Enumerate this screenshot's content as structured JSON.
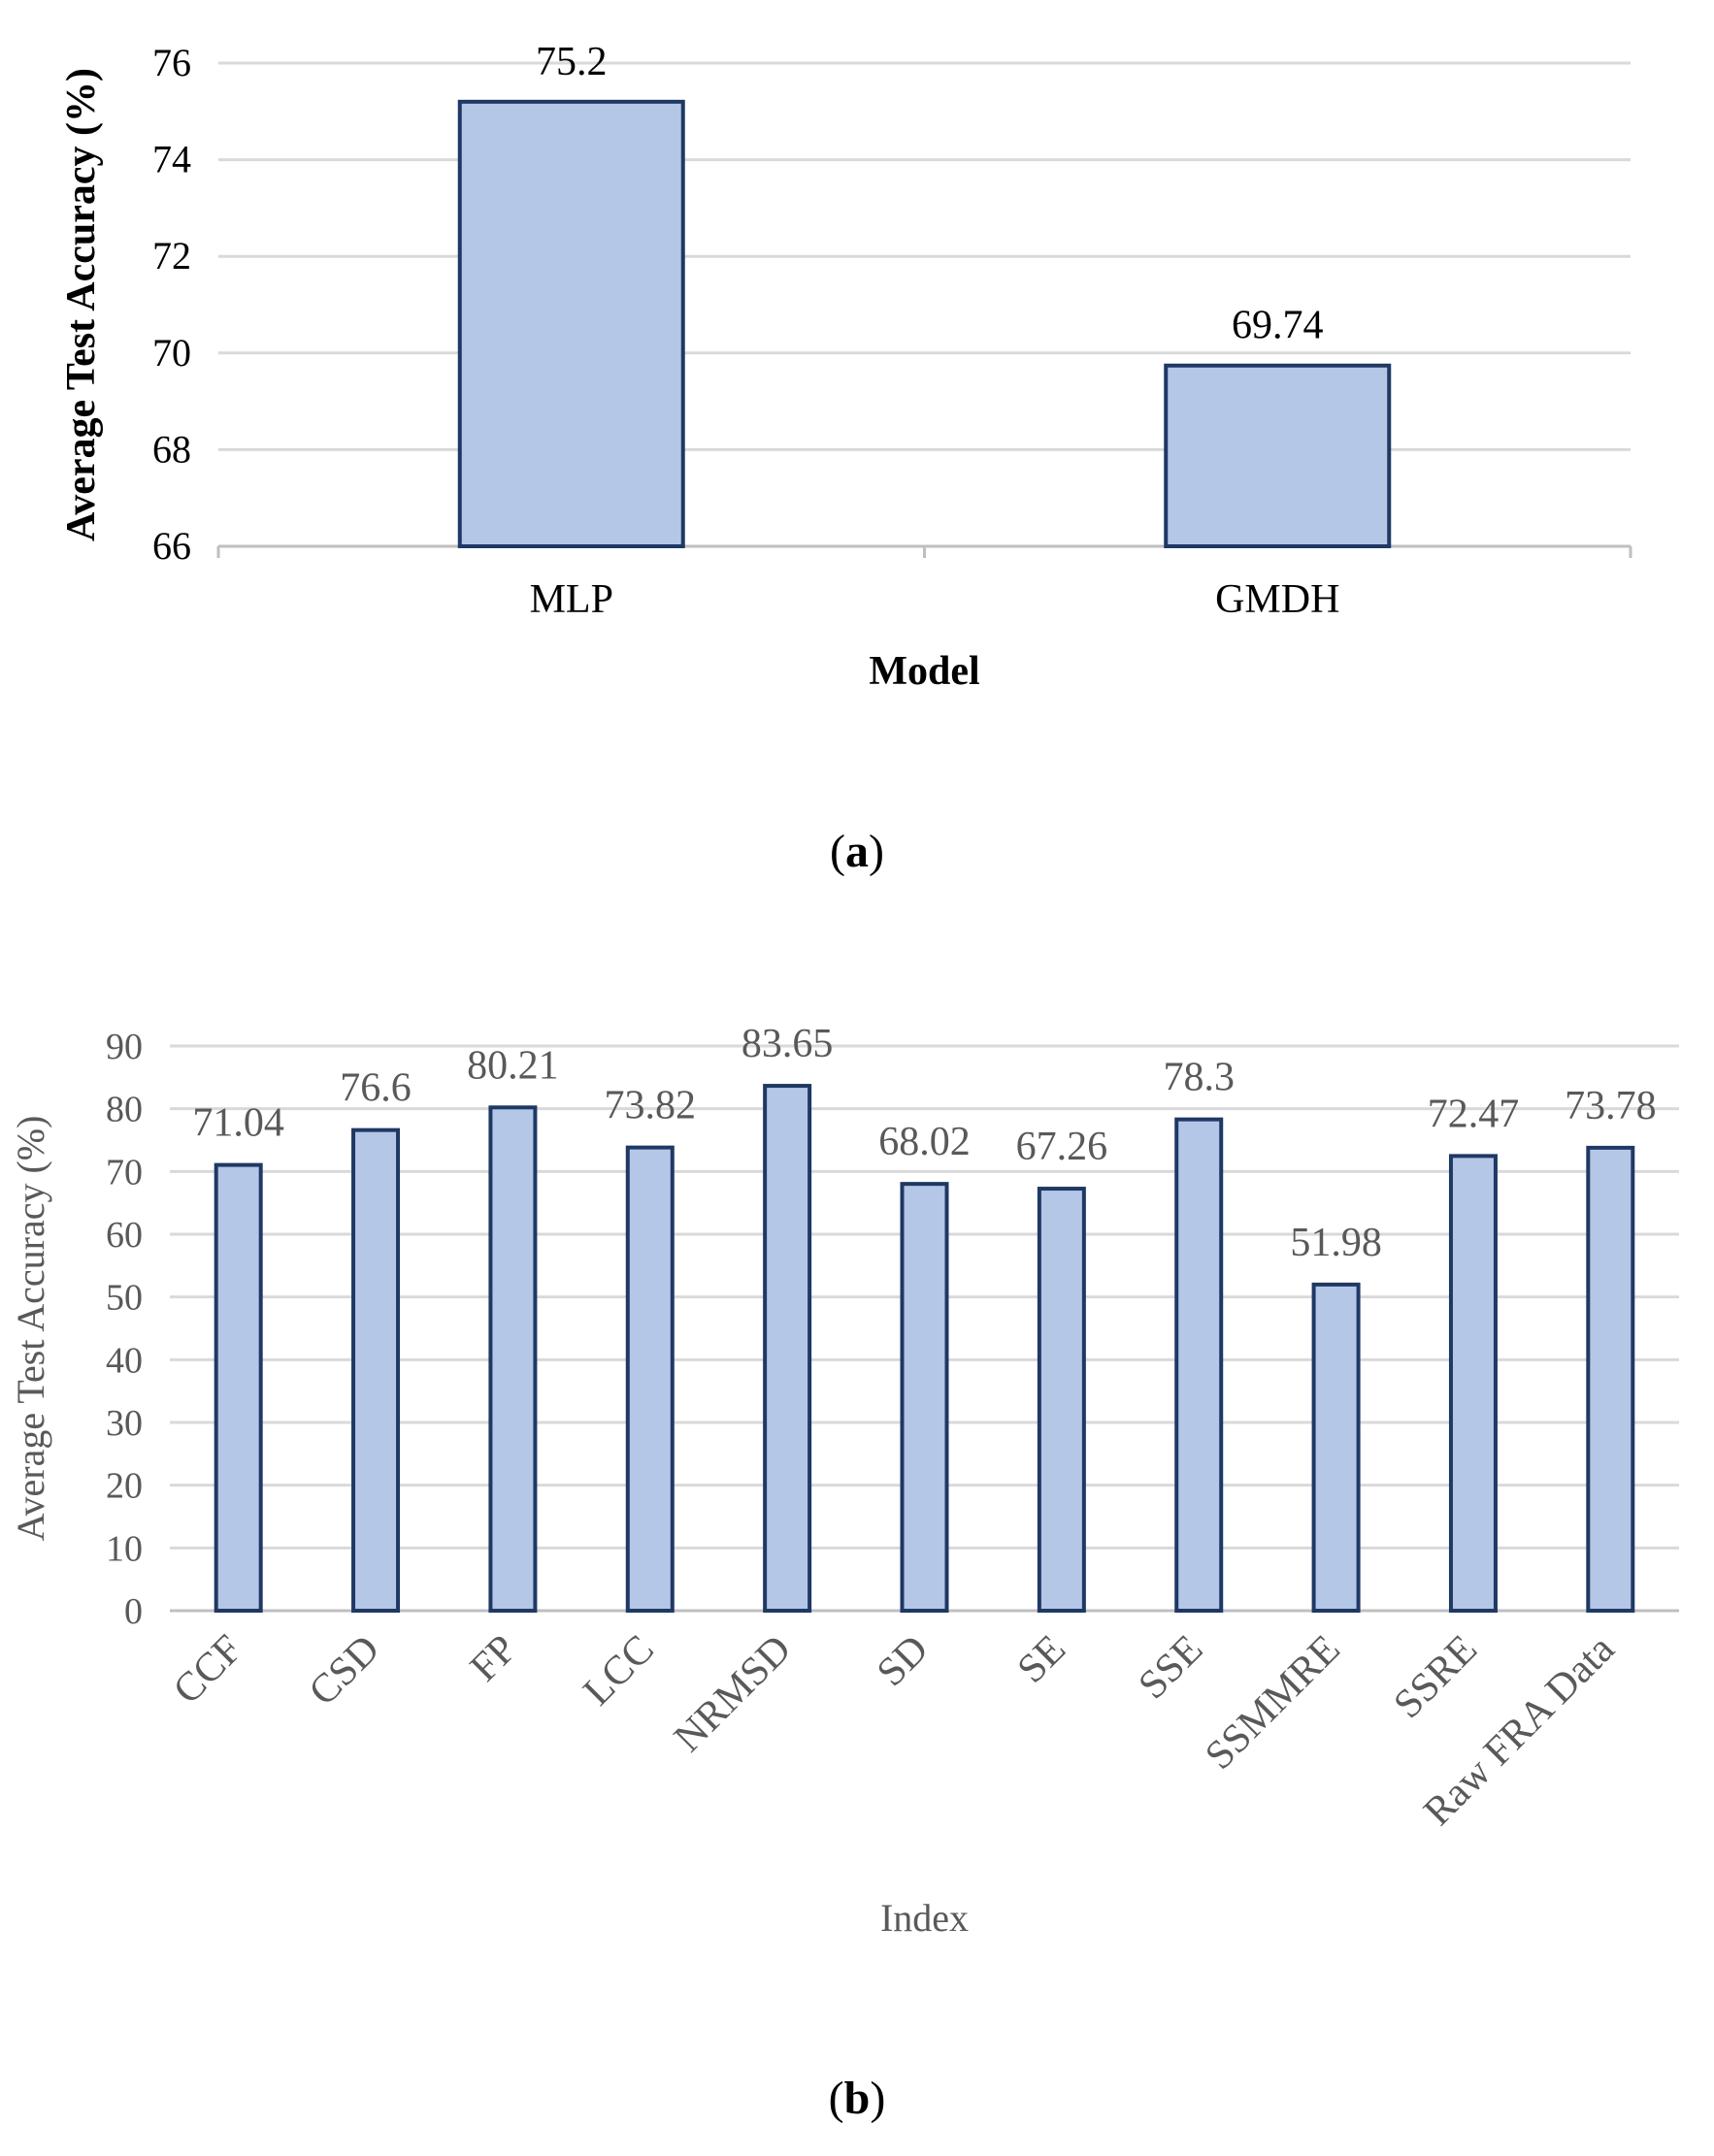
{
  "chart_data": [
    {
      "type": "bar",
      "panel_label": "a",
      "categories": [
        "MLP",
        "GMDH"
      ],
      "values": [
        75.2,
        69.74
      ],
      "data_labels": [
        "75.2",
        "69.74"
      ],
      "title": "",
      "xlabel": "Model",
      "ylabel": "Average Test Accuracy (%)",
      "ylim": [
        66,
        76
      ],
      "yticks": [
        66,
        68,
        70,
        72,
        74,
        76
      ],
      "grid": true,
      "colors": {
        "bar_fill": "#b4c7e7",
        "bar_stroke": "#1f3864",
        "grid": "#d9d9d9",
        "axis": "#bfbfbf",
        "text": "#000000"
      }
    },
    {
      "type": "bar",
      "panel_label": "b",
      "categories": [
        "CCF",
        "CSD",
        "FP",
        "LCC",
        "NRMSD",
        "SD",
        "SE",
        "SSE",
        "SSMMRE",
        "SSRE",
        "Raw FRA Data"
      ],
      "values": [
        71.04,
        76.6,
        80.21,
        73.82,
        83.65,
        68.02,
        67.26,
        78.3,
        51.98,
        72.47,
        73.78
      ],
      "data_labels": [
        "71.04",
        "76.6",
        "80.21",
        "73.82",
        "83.65",
        "68.02",
        "67.26",
        "78.3",
        "51.98",
        "72.47",
        "73.78"
      ],
      "title": "",
      "xlabel": "Index",
      "ylabel": "Average Test Accuracy (%)",
      "ylim": [
        0,
        90
      ],
      "yticks": [
        0,
        10,
        20,
        30,
        40,
        50,
        60,
        70,
        80,
        90
      ],
      "grid": true,
      "colors": {
        "bar_fill": "#b4c7e7",
        "bar_stroke": "#1f3864",
        "grid": "#d9d9d9",
        "axis": "#bfbfbf",
        "text": "#595959"
      }
    }
  ]
}
